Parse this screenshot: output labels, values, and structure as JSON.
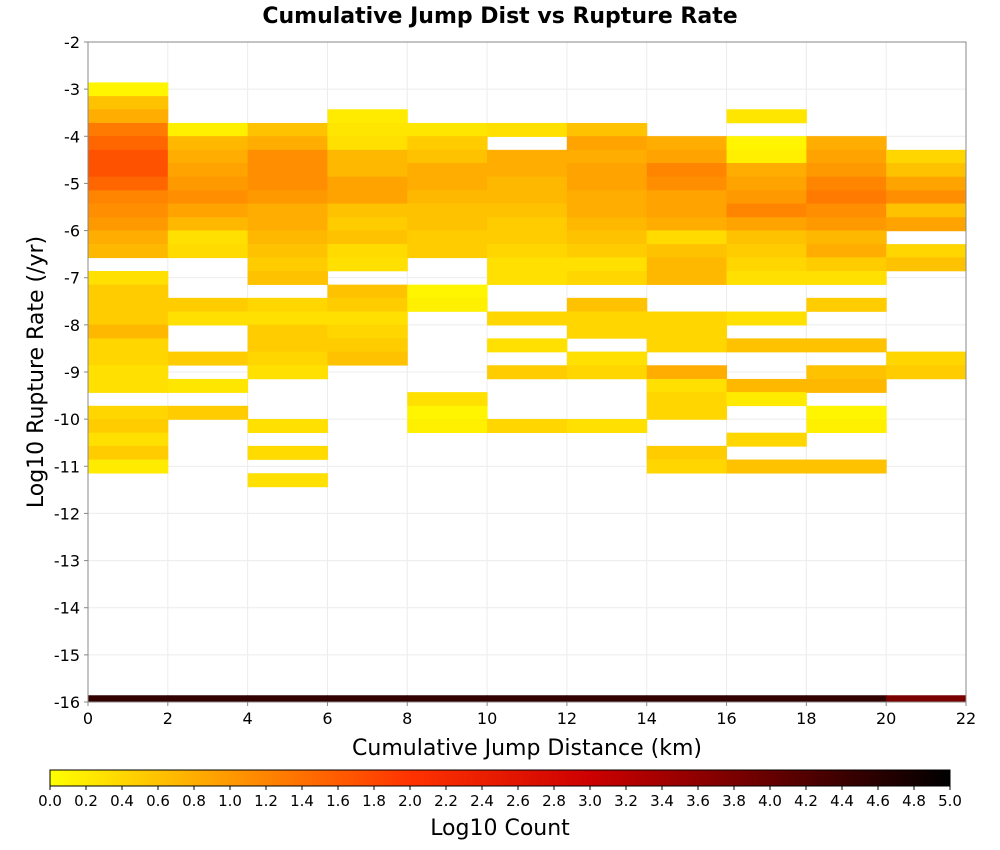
{
  "chart_data": {
    "type": "heatmap",
    "title": "Cumulative Jump Dist vs Rupture Rate",
    "xlabel": "Cumulative Jump Distance (km)",
    "ylabel": "Log10 Rupture Rate (/yr)",
    "xlim": [
      0,
      22
    ],
    "ylim": [
      -16,
      -2
    ],
    "x_ticks": [
      "0",
      "2",
      "4",
      "6",
      "8",
      "10",
      "12",
      "14",
      "16",
      "18",
      "20",
      "22"
    ],
    "y_ticks": [
      "-2",
      "-3",
      "-4",
      "-5",
      "-6",
      "-7",
      "-8",
      "-9",
      "-10",
      "-11",
      "-12",
      "-13",
      "-14",
      "-15",
      "-16"
    ],
    "x_bin_width": 2,
    "y_bin_height": 0.286,
    "grid": true,
    "colorbar": {
      "label": "Log10 Count",
      "range": [
        0.0,
        5.0
      ],
      "ticks": [
        "0.0",
        "0.2",
        "0.4",
        "0.6",
        "0.8",
        "1.0",
        "1.2",
        "1.4",
        "1.6",
        "1.8",
        "2.0",
        "2.2",
        "2.4",
        "2.6",
        "2.8",
        "3.0",
        "3.2",
        "3.4",
        "3.6",
        "3.8",
        "4.0",
        "4.2",
        "4.4",
        "4.6",
        "4.8",
        "5.0"
      ],
      "stops": [
        "#ffff00",
        "#ff9900",
        "#ff3300",
        "#cc0000",
        "#660000",
        "#000000"
      ]
    },
    "columns": [
      {
        "x": 0,
        "cells": [
          [
            -3.0,
            0.1
          ],
          [
            -3.29,
            0.6
          ],
          [
            -3.57,
            0.8
          ],
          [
            -3.86,
            1.3
          ],
          [
            -4.14,
            1.5
          ],
          [
            -4.43,
            1.7
          ],
          [
            -4.71,
            1.7
          ],
          [
            -5.0,
            1.5
          ],
          [
            -5.29,
            1.2
          ],
          [
            -5.57,
            1.1
          ],
          [
            -5.86,
            1.0
          ],
          [
            -6.14,
            0.8
          ],
          [
            -6.43,
            0.7
          ],
          [
            -7.0,
            0.3
          ],
          [
            -7.29,
            0.5
          ],
          [
            -7.57,
            0.5
          ],
          [
            -7.86,
            0.5
          ],
          [
            -8.14,
            0.7
          ],
          [
            -8.43,
            0.4
          ],
          [
            -8.71,
            0.4
          ],
          [
            -9.0,
            0.3
          ],
          [
            -9.29,
            0.3
          ],
          [
            -9.86,
            0.4
          ],
          [
            -10.14,
            0.5
          ],
          [
            -10.43,
            0.3
          ],
          [
            -10.71,
            0.5
          ],
          [
            -11.0,
            0.2
          ],
          [
            -16.0,
            4.5
          ]
        ]
      },
      {
        "x": 2,
        "cells": [
          [
            -3.86,
            0.15
          ],
          [
            -4.14,
            0.7
          ],
          [
            -4.43,
            0.8
          ],
          [
            -4.71,
            0.9
          ],
          [
            -5.0,
            1.0
          ],
          [
            -5.29,
            1.1
          ],
          [
            -5.57,
            0.9
          ],
          [
            -5.86,
            0.7
          ],
          [
            -6.14,
            0.3
          ],
          [
            -6.43,
            0.35
          ],
          [
            -7.57,
            0.5
          ],
          [
            -7.86,
            0.3
          ],
          [
            -8.71,
            0.5
          ],
          [
            -9.29,
            0.25
          ],
          [
            -9.86,
            0.5
          ],
          [
            -16.0,
            4.5
          ]
        ]
      },
      {
        "x": 4,
        "cells": [
          [
            -3.86,
            0.6
          ],
          [
            -4.14,
            0.8
          ],
          [
            -4.43,
            1.1
          ],
          [
            -4.71,
            1.1
          ],
          [
            -5.0,
            1.1
          ],
          [
            -5.29,
            1.0
          ],
          [
            -5.57,
            0.8
          ],
          [
            -5.86,
            0.8
          ],
          [
            -6.14,
            0.7
          ],
          [
            -6.43,
            0.6
          ],
          [
            -6.71,
            0.5
          ],
          [
            -7.0,
            0.6
          ],
          [
            -7.57,
            0.4
          ],
          [
            -7.86,
            0.3
          ],
          [
            -8.14,
            0.5
          ],
          [
            -8.43,
            0.5
          ],
          [
            -8.71,
            0.4
          ],
          [
            -9.0,
            0.3
          ],
          [
            -10.14,
            0.3
          ],
          [
            -10.71,
            0.35
          ],
          [
            -11.29,
            0.3
          ],
          [
            -16.0,
            4.5
          ]
        ]
      },
      {
        "x": 6,
        "cells": [
          [
            -3.57,
            0.2
          ],
          [
            -3.86,
            0.25
          ],
          [
            -4.14,
            0.3
          ],
          [
            -4.43,
            0.7
          ],
          [
            -4.71,
            0.7
          ],
          [
            -5.0,
            0.9
          ],
          [
            -5.29,
            0.9
          ],
          [
            -5.57,
            0.6
          ],
          [
            -5.86,
            0.5
          ],
          [
            -6.14,
            0.6
          ],
          [
            -6.43,
            0.35
          ],
          [
            -6.71,
            0.3
          ],
          [
            -7.29,
            0.6
          ],
          [
            -7.57,
            0.5
          ],
          [
            -7.86,
            0.3
          ],
          [
            -8.14,
            0.4
          ],
          [
            -8.43,
            0.5
          ],
          [
            -8.71,
            0.6
          ],
          [
            -16.0,
            4.5
          ]
        ]
      },
      {
        "x": 8,
        "cells": [
          [
            -3.86,
            0.25
          ],
          [
            -4.14,
            0.5
          ],
          [
            -4.43,
            0.6
          ],
          [
            -4.71,
            0.8
          ],
          [
            -5.0,
            0.8
          ],
          [
            -5.29,
            0.7
          ],
          [
            -5.57,
            0.6
          ],
          [
            -5.86,
            0.6
          ],
          [
            -6.14,
            0.5
          ],
          [
            -6.43,
            0.5
          ],
          [
            -7.29,
            0.1
          ],
          [
            -7.57,
            0.15
          ],
          [
            -9.57,
            0.3
          ],
          [
            -9.86,
            0.1
          ],
          [
            -10.14,
            0.15
          ],
          [
            -16.0,
            4.5
          ]
        ]
      },
      {
        "x": 10,
        "cells": [
          [
            -3.86,
            0.3
          ],
          [
            -4.43,
            0.8
          ],
          [
            -4.71,
            0.8
          ],
          [
            -5.0,
            0.7
          ],
          [
            -5.29,
            0.7
          ],
          [
            -5.57,
            0.6
          ],
          [
            -5.86,
            0.5
          ],
          [
            -6.14,
            0.5
          ],
          [
            -6.43,
            0.4
          ],
          [
            -6.71,
            0.3
          ],
          [
            -7.0,
            0.3
          ],
          [
            -7.86,
            0.4
          ],
          [
            -8.43,
            0.3
          ],
          [
            -9.0,
            0.5
          ],
          [
            -10.14,
            0.4
          ],
          [
            -16.0,
            4.5
          ]
        ]
      },
      {
        "x": 12,
        "cells": [
          [
            -3.86,
            0.6
          ],
          [
            -4.14,
            0.9
          ],
          [
            -4.43,
            0.8
          ],
          [
            -4.71,
            0.9
          ],
          [
            -5.0,
            0.9
          ],
          [
            -5.29,
            0.8
          ],
          [
            -5.57,
            0.8
          ],
          [
            -5.86,
            0.7
          ],
          [
            -6.14,
            0.6
          ],
          [
            -6.43,
            0.5
          ],
          [
            -6.71,
            0.3
          ],
          [
            -7.0,
            0.4
          ],
          [
            -7.57,
            0.6
          ],
          [
            -7.86,
            0.4
          ],
          [
            -8.14,
            0.4
          ],
          [
            -8.71,
            0.3
          ],
          [
            -9.0,
            0.4
          ],
          [
            -10.14,
            0.3
          ],
          [
            -16.0,
            4.5
          ]
        ]
      },
      {
        "x": 14,
        "cells": [
          [
            -4.14,
            0.8
          ],
          [
            -4.43,
            0.9
          ],
          [
            -4.71,
            1.2
          ],
          [
            -5.0,
            1.1
          ],
          [
            -5.29,
            0.9
          ],
          [
            -5.57,
            0.9
          ],
          [
            -5.86,
            0.8
          ],
          [
            -6.14,
            0.35
          ],
          [
            -6.43,
            0.6
          ],
          [
            -6.71,
            0.7
          ],
          [
            -7.0,
            0.7
          ],
          [
            -7.86,
            0.4
          ],
          [
            -8.14,
            0.4
          ],
          [
            -8.43,
            0.4
          ],
          [
            -9.0,
            0.8
          ],
          [
            -9.29,
            0.3
          ],
          [
            -9.57,
            0.4
          ],
          [
            -9.86,
            0.4
          ],
          [
            -10.71,
            0.5
          ],
          [
            -11.0,
            0.4
          ],
          [
            -16.0,
            4.5
          ]
        ]
      },
      {
        "x": 16,
        "cells": [
          [
            -3.57,
            0.25
          ],
          [
            -4.14,
            0.1
          ],
          [
            -4.43,
            0.15
          ],
          [
            -4.71,
            0.8
          ],
          [
            -5.0,
            0.9
          ],
          [
            -5.29,
            1.0
          ],
          [
            -5.57,
            1.2
          ],
          [
            -5.86,
            0.9
          ],
          [
            -6.14,
            0.6
          ],
          [
            -6.43,
            0.5
          ],
          [
            -6.71,
            0.4
          ],
          [
            -7.0,
            0.3
          ],
          [
            -7.86,
            0.3
          ],
          [
            -8.43,
            0.6
          ],
          [
            -9.29,
            0.7
          ],
          [
            -9.57,
            0.2
          ],
          [
            -10.43,
            0.4
          ],
          [
            -11.0,
            0.6
          ],
          [
            -16.0,
            4.5
          ]
        ]
      },
      {
        "x": 18,
        "cells": [
          [
            -4.14,
            0.8
          ],
          [
            -4.43,
            0.9
          ],
          [
            -4.71,
            1.0
          ],
          [
            -5.0,
            1.2
          ],
          [
            -5.29,
            1.3
          ],
          [
            -5.57,
            1.1
          ],
          [
            -5.86,
            1.0
          ],
          [
            -6.14,
            0.7
          ],
          [
            -6.43,
            0.8
          ],
          [
            -6.71,
            0.5
          ],
          [
            -7.0,
            0.3
          ],
          [
            -7.57,
            0.5
          ],
          [
            -8.43,
            0.6
          ],
          [
            -9.0,
            0.6
          ],
          [
            -9.29,
            0.7
          ],
          [
            -9.86,
            0.1
          ],
          [
            -10.14,
            0.15
          ],
          [
            -11.0,
            0.6
          ],
          [
            -16.0,
            4.5
          ]
        ]
      },
      {
        "x": 20,
        "cells": [
          [
            -4.43,
            0.4
          ],
          [
            -4.71,
            0.6
          ],
          [
            -5.0,
            0.9
          ],
          [
            -5.29,
            1.1
          ],
          [
            -5.57,
            0.6
          ],
          [
            -5.86,
            0.9
          ],
          [
            -6.43,
            0.4
          ],
          [
            -6.71,
            0.6
          ],
          [
            -8.71,
            0.4
          ],
          [
            -9.0,
            0.5
          ],
          [
            -16.0,
            3.8
          ]
        ]
      }
    ]
  }
}
